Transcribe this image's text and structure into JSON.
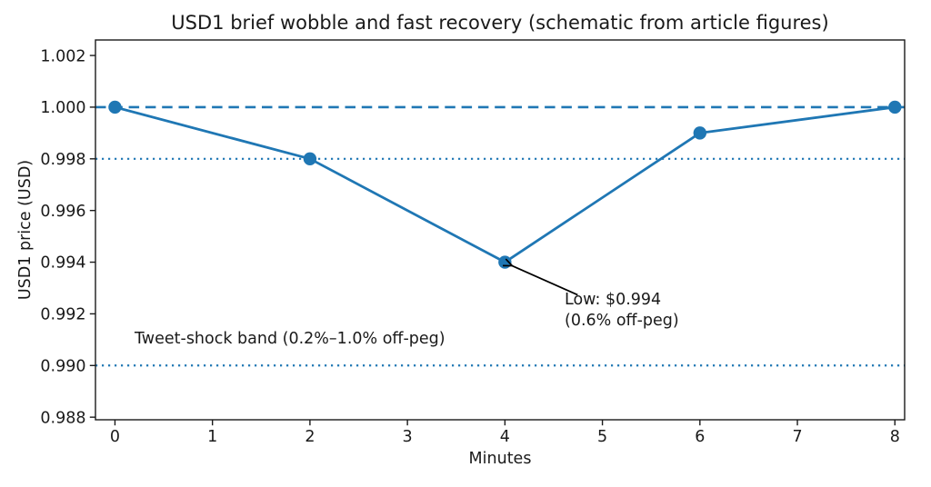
{
  "colors": {
    "background": "#ffffff",
    "text": "#1a1a1a",
    "accent_blue": "#1f77b4",
    "annotation_black": "#000000"
  },
  "chart_data": {
    "type": "line",
    "title": "USD1 brief wobble and fast recovery (schematic from article figures)",
    "xlabel": "Minutes",
    "ylabel": "USD1 price (USD)",
    "x": [
      0,
      2,
      4,
      6,
      8
    ],
    "y": [
      1.0,
      0.998,
      0.994,
      0.999,
      1.0
    ],
    "line_color": "#1f77b4",
    "marker": "circle",
    "marker_color": "#1f77b4",
    "xticks": [
      0,
      1,
      2,
      3,
      4,
      5,
      6,
      7,
      8
    ],
    "yticks": [
      0.988,
      0.99,
      0.992,
      0.994,
      0.996,
      0.998,
      1.0,
      1.002
    ],
    "xlim": [
      -0.2,
      8.1
    ],
    "ylim": [
      0.9879,
      1.0026
    ],
    "grid": false,
    "legend": "none",
    "reference_lines": [
      {
        "y": 1.0,
        "style": "dashed",
        "color": "#1f77b4"
      },
      {
        "y": 0.998,
        "style": "dotted",
        "color": "#1f77b4"
      },
      {
        "y": 0.99,
        "style": "dotted",
        "color": "#1f77b4"
      }
    ],
    "annotations": {
      "low": {
        "line1": "Low: $0.994",
        "line2": "(0.6% off-peg)",
        "point": {
          "x": 4,
          "y": 0.994
        }
      },
      "band": {
        "text": "Tweet-shock band (0.2%–1.0% off-peg)"
      }
    }
  }
}
